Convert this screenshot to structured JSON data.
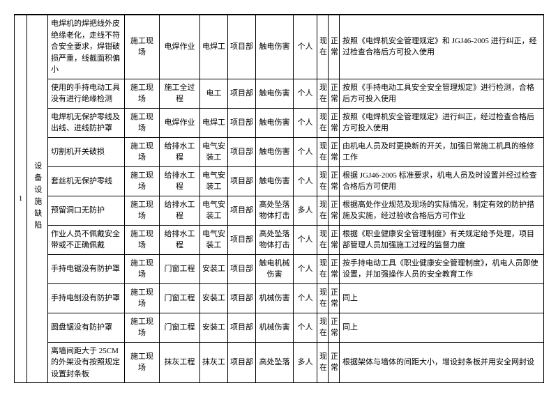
{
  "index": "1",
  "category": "设备设施缺陷",
  "rows": [
    {
      "desc": "电焊机的焊把线外皮绝缘老化，走线不符合安全要求，焊钳破损严重，线截面积偏小",
      "loc": "施工现场",
      "proc": "电焊作业",
      "worker": "电焊工",
      "dept": "项目部",
      "hazard": "触电伤害",
      "who": "个人",
      "s1": "现在",
      "s2": "正常",
      "action": "按照《电焊机安全管理规定》和 JGJ46-2005 进行纠正，经过检查合格后方可投入使用"
    },
    {
      "desc": "使用的手持电动工具没有进行绝缘检测",
      "loc": "施工现场",
      "proc": "施工全过程",
      "worker": "电工",
      "dept": "项目部",
      "hazard": "触电伤害",
      "who": "个人",
      "s1": "现在",
      "s2": "正常",
      "action": "按照《手持电动工具安全安全管理规定》进行检测，合格后方可投入使用"
    },
    {
      "desc": "电焊机无保护零线及出线、进线防护罩",
      "loc": "施工现场",
      "proc": "电焊作业",
      "worker": "电焊工",
      "dept": "项目部",
      "hazard": "触电伤害",
      "who": "个人",
      "s1": "现在",
      "s2": "正常",
      "action": "按照《电焊机安全管理规定》进行纠正，经过检查合格后方可投入使用"
    },
    {
      "desc": "切割机开关破损",
      "loc": "施工现场",
      "proc": "给排水工程",
      "worker": "电气安装工",
      "dept": "项目部",
      "hazard": "触电伤害",
      "who": "个人",
      "s1": "现在",
      "s2": "正常",
      "action": "由机电人员及时更换新的开关，加强日常施工机具的维修工作"
    },
    {
      "desc": "套丝机无保护零线",
      "loc": "施工现场",
      "proc": "给排水工程",
      "worker": "电气安装工",
      "dept": "项目部",
      "hazard": "触电伤害",
      "who": "个人",
      "s1": "现在",
      "s2": "正常",
      "action": "根据 JGJ46-2005 标准要求，机电人员及时设置并经过检查合格后方可使用"
    },
    {
      "desc": "预留洞口无防护",
      "loc": "施工现场",
      "proc": "给排水工程",
      "worker": "电气安装工",
      "dept": "项目部",
      "hazard": "高处坠落物体打击",
      "who": "多人",
      "s1": "现在",
      "s2": "正常",
      "action": "根据高处作业规范及现场的实际情况，制定有效的防护措施及实施，经过验收合格后方可作业"
    },
    {
      "desc": "作业人员不佩戴安全带或不正确佩戴",
      "loc": "施工现场",
      "proc": "给排水工程",
      "worker": "电气安装工",
      "dept": "项目部",
      "hazard": "高处坠落物体打击",
      "who": "个人",
      "s1": "现在",
      "s2": "正常",
      "action": "根据《职业健康安全管理制度》有关规定给予处理，项目部管理人员加强施工过程的监督力度"
    },
    {
      "desc": "手持电锯没有防护罩",
      "loc": "施工现场",
      "proc": "门窗工程",
      "worker": "安装工",
      "dept": "项目部",
      "hazard": "触电机械伤害",
      "who": "个人",
      "s1": "现在",
      "s2": "正常",
      "action": "按手持电动工具《职业健康安全管理制度》，机电人员即使设置，并加强操作人员的安全教育工作"
    },
    {
      "desc": "手持电刨没有防护罩",
      "loc": "施工现场",
      "proc": "门窗工程",
      "worker": "安装工",
      "dept": "项目部",
      "hazard": "机械伤害",
      "who": "个人",
      "s1": "现在",
      "s2": "正常",
      "action": "同上"
    },
    {
      "desc": "圆盘锯没有防护罩",
      "loc": "施工现场",
      "proc": "门窗工程",
      "worker": "安装工",
      "dept": "项目部",
      "hazard": "机械伤害",
      "who": "个人",
      "s1": "现在",
      "s2": "正常",
      "action": "同上"
    },
    {
      "desc": "离墙间距大于 25CM 的外架没有按照规定设置封条板",
      "loc": "施工现场",
      "proc": "抹灰工程",
      "worker": "抹灰工",
      "dept": "项目部",
      "hazard": "高处坠落",
      "who": "多人",
      "s1": "现在",
      "s2": "正常",
      "action": "根据架体与墙体的间距大小，增设封条板并用安全网封设"
    }
  ]
}
